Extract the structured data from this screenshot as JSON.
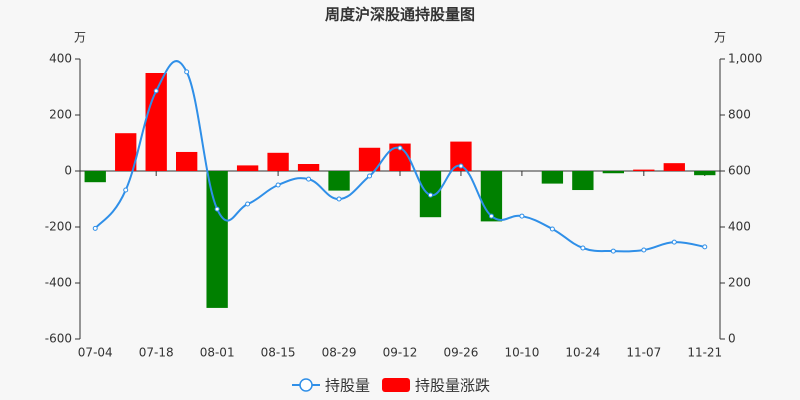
{
  "chart_data": {
    "type": "bar-line",
    "title": "周度沪深股通持股量图",
    "y_unit": "万",
    "y2_unit": "万",
    "categories": [
      "07-04",
      null,
      "07-18",
      null,
      "08-01",
      null,
      "08-15",
      null,
      "08-29",
      null,
      "09-12",
      null,
      "09-26",
      null,
      "10-10",
      null,
      "10-24",
      null,
      "11-07",
      null,
      "11-21"
    ],
    "ylim": [
      -600,
      400
    ],
    "yticks": [
      -600,
      -400,
      -200,
      0,
      200,
      400
    ],
    "y2lim": [
      0,
      1000
    ],
    "y2ticks": [
      0,
      200,
      400,
      600,
      800,
      {
        "value": 1000,
        "label": "1,000"
      }
    ],
    "series": [
      {
        "name": "持股量",
        "type": "line",
        "axis": "y2",
        "color": "#2f8fe8",
        "values": [
          395,
          532,
          886,
          954,
          464,
          482,
          550,
          571,
          500,
          582,
          682,
          514,
          618,
          439,
          439,
          393,
          325,
          314,
          318,
          346,
          329
        ]
      },
      {
        "name": "持股量涨跌",
        "type": "bar",
        "color": "#ff0000",
        "down_color": "#008000",
        "values": [
          -40,
          135,
          350,
          68,
          -489,
          20,
          65,
          25,
          -70,
          83,
          98,
          -165,
          105,
          -180,
          null,
          -45,
          -68,
          -8,
          5,
          28,
          -15
        ]
      }
    ]
  }
}
